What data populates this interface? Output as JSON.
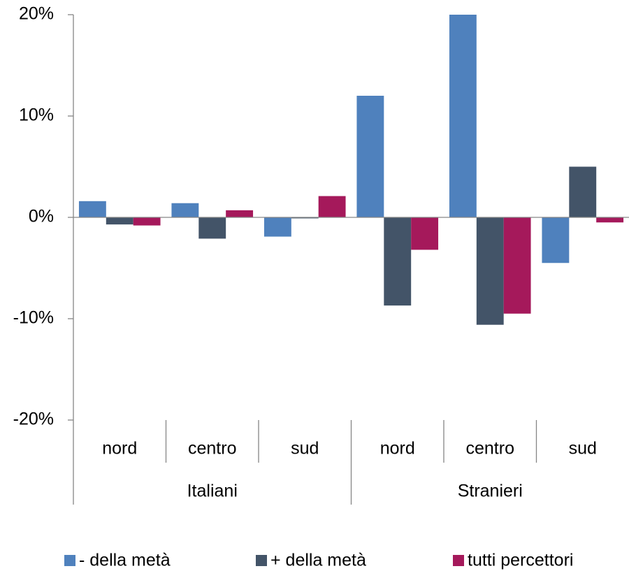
{
  "chart_data": {
    "type": "bar",
    "category_groups": [
      {
        "name": "Italiani",
        "categories": [
          "nord",
          "centro",
          "sud"
        ]
      },
      {
        "name": "Stranieri",
        "categories": [
          "nord",
          "centro",
          "sud"
        ]
      }
    ],
    "series": [
      {
        "name": "- della metà",
        "color": "#4f81bd",
        "values": [
          1.6,
          1.4,
          -1.9,
          12.0,
          20.0,
          -4.5
        ]
      },
      {
        "name": "+ della metà",
        "color": "#435468",
        "values": [
          -0.7,
          -2.1,
          -0.1,
          -8.7,
          -10.6,
          5.0
        ]
      },
      {
        "name": "tutti percettori",
        "color": "#a5195b",
        "values": [
          -0.8,
          0.7,
          2.1,
          -3.2,
          -9.5,
          -0.5
        ]
      }
    ],
    "ylim": [
      -20,
      20
    ],
    "yticks": [
      {
        "value": -20,
        "label": "-20%"
      },
      {
        "value": -10,
        "label": "-10%"
      },
      {
        "value": 0,
        "label": "0%"
      },
      {
        "value": 10,
        "label": "10%"
      },
      {
        "value": 20,
        "label": "20%"
      }
    ],
    "legend": "bottom"
  }
}
